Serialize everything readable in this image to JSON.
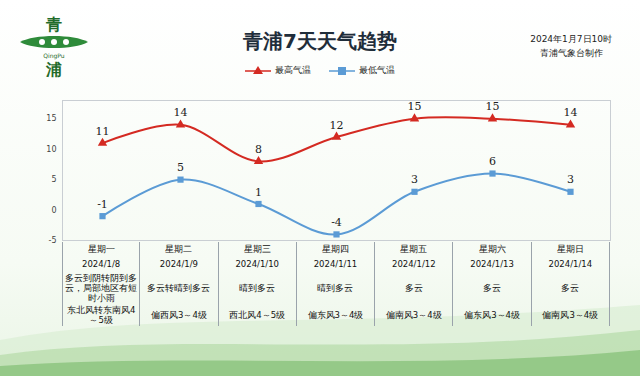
{
  "chart_data": {
    "type": "line",
    "title": "青浦7天天气趋势",
    "issued": "2024年1月7日10时",
    "producer": "青浦气象台制作",
    "logo": [
      "青",
      "QingPu",
      "浦"
    ],
    "categories": [
      "星期一",
      "星期二",
      "星期三",
      "星期四",
      "星期五",
      "星期六",
      "星期日"
    ],
    "dates": [
      "2024/1/8",
      "2024/1/9",
      "2024/1/10",
      "2024/1/11",
      "2024/1/12",
      "2024/1/13",
      "2024/1/14"
    ],
    "weather": [
      "多云到阴转阴到多云，局部地区有短时小雨",
      "多云转晴到多云",
      "晴到多云",
      "晴到多云",
      "多云",
      "多云",
      "多云"
    ],
    "wind": [
      "东北风转东南风4～5级",
      "偏西风3～4级",
      "西北风4～5级",
      "偏东风3～4级",
      "偏南风3～4级",
      "偏东风3～4级",
      "偏南风3～4级"
    ],
    "series": [
      {
        "name": "最高气温",
        "color": "#d42a22",
        "marker": "triangle",
        "values": [
          11,
          14,
          8,
          12,
          15,
          15,
          14
        ]
      },
      {
        "name": "最低气温",
        "color": "#5b9bd5",
        "marker": "square",
        "values": [
          -1,
          5,
          1,
          -4,
          3,
          6,
          3
        ]
      }
    ],
    "ylim": [
      -5,
      18
    ],
    "yticks": [
      -5,
      0,
      5,
      10,
      15
    ],
    "grid": false,
    "data_labels": true,
    "line_style": "smooth",
    "legend": "top"
  }
}
